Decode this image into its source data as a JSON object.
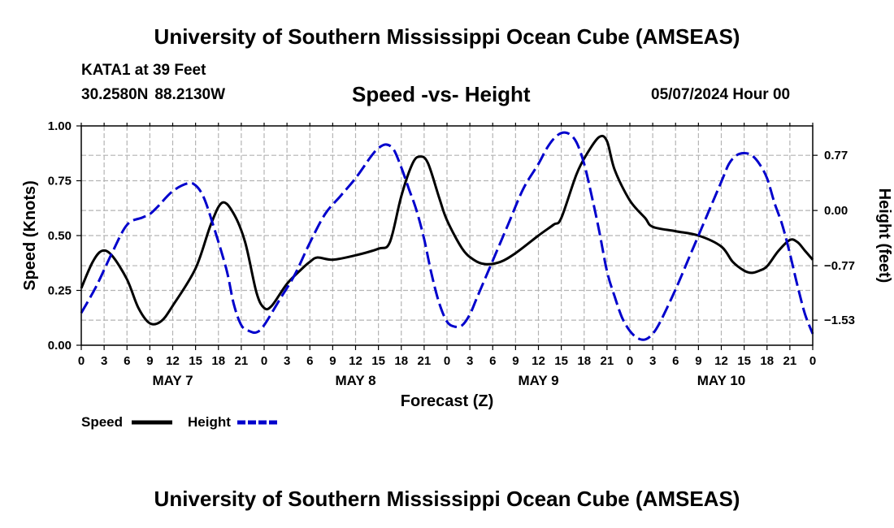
{
  "header": {
    "title": "University of Southern Mississippi Ocean Cube (AMSEAS)",
    "station": "KATA1 at 39 Feet",
    "lat": "30.2580N",
    "lon": "88.2130W",
    "date": "05/07/2024 Hour 00"
  },
  "footer": {
    "title": "University of Southern Mississippi Ocean Cube (AMSEAS)"
  },
  "legend": {
    "speed_label": "Speed",
    "height_label": "Height",
    "speed_color": "#000000",
    "height_color": "#0000cc"
  },
  "chart_data": {
    "type": "line",
    "title": "Speed -vs- Height",
    "xlabel": "Forecast (Z)",
    "ylabel": "Speed (Knots)",
    "y2label": "Height (feet)",
    "xlim": [
      0,
      96
    ],
    "ylim": [
      0,
      1
    ],
    "y2lim": [
      -1.88,
      1.18
    ],
    "x_ticks": [
      0,
      3,
      6,
      9,
      12,
      15,
      18,
      21,
      24,
      27,
      30,
      33,
      36,
      39,
      42,
      45,
      48,
      51,
      54,
      57,
      60,
      63,
      66,
      69,
      72,
      75,
      78,
      81,
      84,
      87,
      90,
      93,
      96
    ],
    "x_tick_labels": [
      "0",
      "3",
      "6",
      "9",
      "12",
      "15",
      "18",
      "21",
      "0",
      "3",
      "6",
      "9",
      "12",
      "15",
      "18",
      "21",
      "0",
      "3",
      "6",
      "9",
      "12",
      "15",
      "18",
      "21",
      "0",
      "3",
      "6",
      "9",
      "12",
      "15",
      "18",
      "21",
      "0"
    ],
    "day_labels": [
      {
        "x": 12,
        "label": "MAY 7"
      },
      {
        "x": 36,
        "label": "MAY 8"
      },
      {
        "x": 60,
        "label": "MAY 9"
      },
      {
        "x": 84,
        "label": "MAY 10"
      }
    ],
    "y_ticks": [
      0,
      0.25,
      0.5,
      0.75,
      1.0
    ],
    "y_tick_labels": [
      "0.00",
      "0.25",
      "0.50",
      "0.75",
      "1.00"
    ],
    "y2_ticks": [
      -1.53,
      -0.77,
      0.0,
      0.77
    ],
    "y2_tick_labels": [
      "−1.53",
      "−0.77",
      "0.00",
      "0.77"
    ],
    "grid": true,
    "series": [
      {
        "name": "Speed",
        "axis": "left",
        "color": "#000000",
        "dash": "solid",
        "points": [
          [
            0,
            0.26
          ],
          [
            1.5,
            0.38
          ],
          [
            2.7,
            0.43
          ],
          [
            4,
            0.41
          ],
          [
            6,
            0.3
          ],
          [
            7.5,
            0.17
          ],
          [
            9,
            0.1
          ],
          [
            10.5,
            0.11
          ],
          [
            12,
            0.18
          ],
          [
            15,
            0.35
          ],
          [
            17,
            0.55
          ],
          [
            18.5,
            0.65
          ],
          [
            20,
            0.6
          ],
          [
            21.5,
            0.47
          ],
          [
            23,
            0.24
          ],
          [
            24,
            0.17
          ],
          [
            25,
            0.18
          ],
          [
            27,
            0.28
          ],
          [
            29,
            0.35
          ],
          [
            30,
            0.38
          ],
          [
            31,
            0.4
          ],
          [
            33,
            0.39
          ],
          [
            36,
            0.41
          ],
          [
            39,
            0.44
          ],
          [
            40.5,
            0.47
          ],
          [
            42,
            0.68
          ],
          [
            43.5,
            0.83
          ],
          [
            44.5,
            0.86
          ],
          [
            45.5,
            0.83
          ],
          [
            47,
            0.67
          ],
          [
            48,
            0.57
          ],
          [
            50,
            0.44
          ],
          [
            51.5,
            0.39
          ],
          [
            53,
            0.37
          ],
          [
            55,
            0.38
          ],
          [
            57,
            0.42
          ],
          [
            60,
            0.5
          ],
          [
            62,
            0.55
          ],
          [
            63,
            0.58
          ],
          [
            65,
            0.78
          ],
          [
            66.5,
            0.88
          ],
          [
            68,
            0.95
          ],
          [
            69,
            0.93
          ],
          [
            70,
            0.8
          ],
          [
            72,
            0.66
          ],
          [
            74,
            0.58
          ],
          [
            75,
            0.54
          ],
          [
            78,
            0.52
          ],
          [
            81,
            0.5
          ],
          [
            84,
            0.45
          ],
          [
            85.5,
            0.38
          ],
          [
            87,
            0.34
          ],
          [
            88,
            0.33
          ],
          [
            89,
            0.34
          ],
          [
            90,
            0.36
          ],
          [
            91.5,
            0.43
          ],
          [
            93,
            0.48
          ],
          [
            94,
            0.47
          ],
          [
            95,
            0.43
          ],
          [
            96,
            0.39
          ]
        ]
      },
      {
        "name": "Height",
        "axis": "right",
        "color": "#0000cc",
        "dash": "dashed",
        "points": [
          [
            0,
            -1.43
          ],
          [
            2,
            -1.05
          ],
          [
            4,
            -0.6
          ],
          [
            6,
            -0.2
          ],
          [
            8,
            -0.1
          ],
          [
            9,
            -0.05
          ],
          [
            10,
            0.05
          ],
          [
            12,
            0.27
          ],
          [
            14,
            0.38
          ],
          [
            15,
            0.35
          ],
          [
            16,
            0.2
          ],
          [
            17,
            -0.1
          ],
          [
            19,
            -0.8
          ],
          [
            20,
            -1.3
          ],
          [
            21,
            -1.6
          ],
          [
            22,
            -1.68
          ],
          [
            23,
            -1.7
          ],
          [
            24,
            -1.6
          ],
          [
            26,
            -1.25
          ],
          [
            28,
            -0.9
          ],
          [
            30,
            -0.45
          ],
          [
            32,
            -0.05
          ],
          [
            34,
            0.2
          ],
          [
            36,
            0.45
          ],
          [
            38,
            0.75
          ],
          [
            39,
            0.87
          ],
          [
            40,
            0.92
          ],
          [
            41,
            0.85
          ],
          [
            42,
            0.6
          ],
          [
            43,
            0.3
          ],
          [
            44,
            0.0
          ],
          [
            45,
            -0.4
          ],
          [
            46,
            -0.9
          ],
          [
            47,
            -1.3
          ],
          [
            48,
            -1.55
          ],
          [
            49,
            -1.62
          ],
          [
            50,
            -1.6
          ],
          [
            51,
            -1.45
          ],
          [
            52,
            -1.2
          ],
          [
            54,
            -0.7
          ],
          [
            56,
            -0.2
          ],
          [
            58,
            0.3
          ],
          [
            60,
            0.65
          ],
          [
            61,
            0.85
          ],
          [
            62,
            1.0
          ],
          [
            63,
            1.08
          ],
          [
            64,
            1.07
          ],
          [
            65,
            0.95
          ],
          [
            66,
            0.65
          ],
          [
            67,
            0.2
          ],
          [
            68,
            -0.3
          ],
          [
            69,
            -0.85
          ],
          [
            70,
            -1.2
          ],
          [
            71,
            -1.5
          ],
          [
            72,
            -1.68
          ],
          [
            73,
            -1.78
          ],
          [
            74,
            -1.8
          ],
          [
            75,
            -1.72
          ],
          [
            76,
            -1.55
          ],
          [
            78,
            -1.1
          ],
          [
            80,
            -0.6
          ],
          [
            82,
            -0.1
          ],
          [
            84,
            0.4
          ],
          [
            85,
            0.65
          ],
          [
            86,
            0.77
          ],
          [
            87,
            0.8
          ],
          [
            88,
            0.77
          ],
          [
            89,
            0.65
          ],
          [
            90,
            0.45
          ],
          [
            91,
            0.1
          ],
          [
            92,
            -0.2
          ],
          [
            93,
            -0.6
          ],
          [
            94,
            -1.05
          ],
          [
            95,
            -1.45
          ],
          [
            96,
            -1.72
          ]
        ]
      }
    ]
  }
}
